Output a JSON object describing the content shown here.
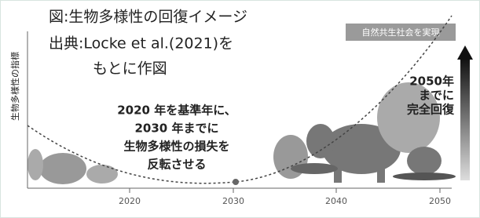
{
  "title_lines": [
    "図:生物多様性の回復イメージ",
    "出典:Locke et al.(2021)を",
    "もとに作図"
  ],
  "y_axis_label": "生物多様性の指標",
  "goal_banner": "自然共生社会を実現",
  "goal_2050": [
    "2050年",
    "までに",
    "完全回復"
  ],
  "annotation": [
    "2020 年を基準年に、",
    "2030 年までに",
    "生物多様性の損失を",
    "反転させる"
  ],
  "x_ticks": [
    "2020",
    "2030",
    "2040",
    "2050"
  ]
}
